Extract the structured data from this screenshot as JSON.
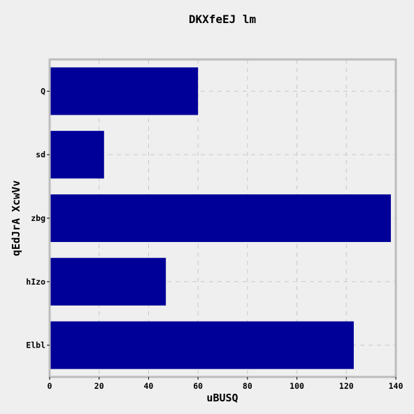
{
  "chart_data": {
    "type": "bar",
    "orientation": "horizontal",
    "title": "DKXfeEJ lm",
    "xlabel": "uBUSQ",
    "ylabel": "qEdJrA XcwVv",
    "categories": [
      "Q",
      "sd",
      "zbg",
      "hIzo",
      "Elbl"
    ],
    "values": [
      60,
      22,
      138,
      47,
      123
    ],
    "xlim": [
      0,
      140
    ],
    "xticks": [
      0,
      20,
      40,
      60,
      80,
      100,
      120,
      140
    ],
    "grid": true,
    "bar_color": "#000099",
    "background_color": "#efefef",
    "frame_color": "#bcbcbc",
    "grid_color": "#c8c8c8"
  }
}
